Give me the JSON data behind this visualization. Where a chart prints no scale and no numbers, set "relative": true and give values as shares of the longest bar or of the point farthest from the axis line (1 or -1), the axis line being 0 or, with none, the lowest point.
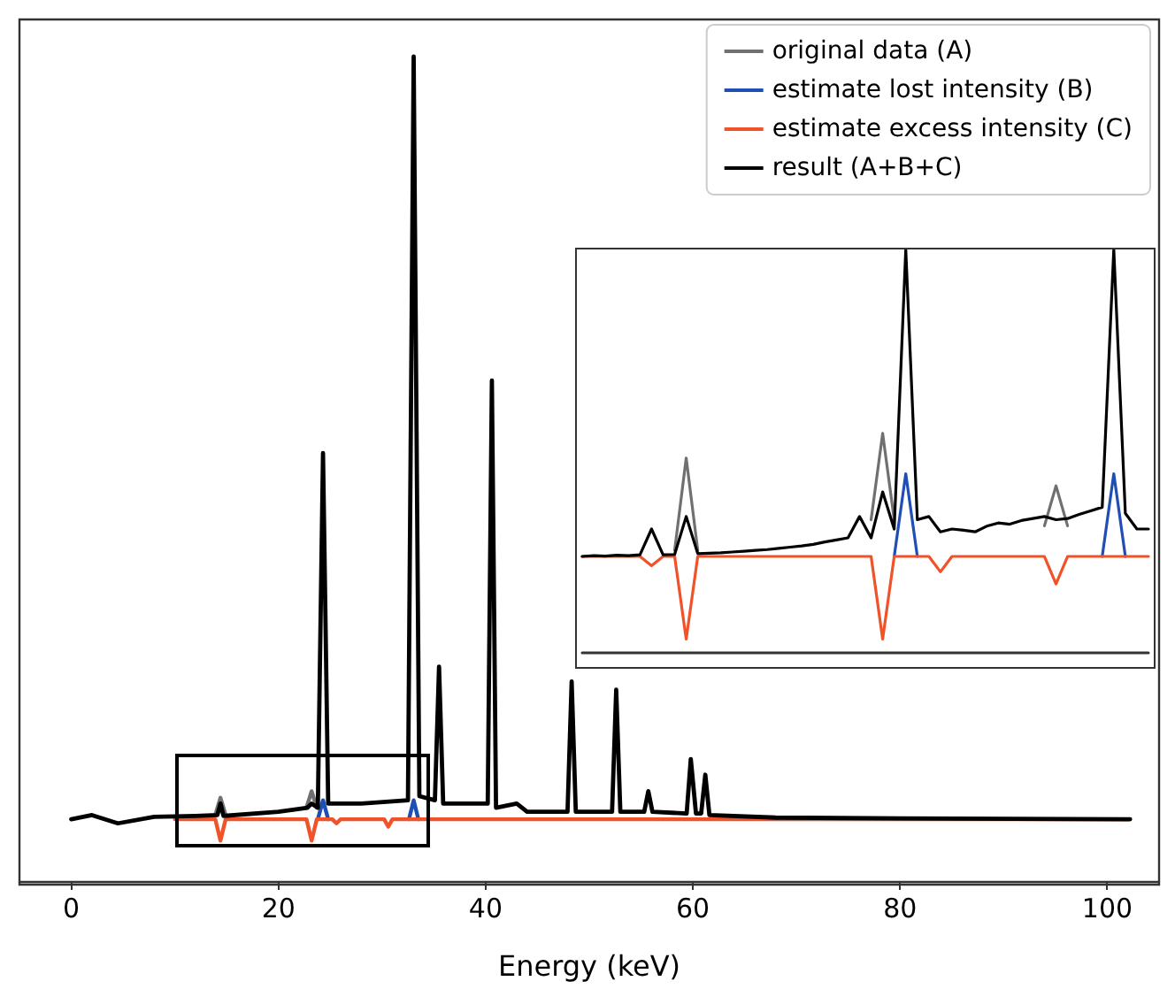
{
  "chart_data": [
    {
      "type": "line",
      "xlabel": "Energy (keV)",
      "relative": true,
      "xlim": [
        -5,
        105
      ],
      "xticks": [
        0,
        20,
        40,
        60,
        80,
        100
      ],
      "legend": "top right",
      "marker": "none",
      "line_style": "solid",
      "series": [
        {
          "name": "original data (A)",
          "color": "#707070",
          "x": [
            13.9,
            14.4,
            14.9,
            20,
            22.7,
            23.2,
            23.7
          ],
          "values": [
            0.08,
            0.101,
            0.08,
            null,
            0.089,
            0.109,
            0.089
          ]
        },
        {
          "name": "estimate lost intensity (B)",
          "color": "#1f4fb4",
          "x": [
            23.8,
            24.3,
            24.8,
            28,
            32.6,
            33.05,
            33.5
          ],
          "values": [
            0.075,
            0.098,
            0.075,
            null,
            0.075,
            0.098,
            0.075
          ]
        },
        {
          "name": "estimate excess intensity (C)",
          "color": "#f0522a",
          "x": [
            10,
            13.9,
            14.4,
            14.9,
            22.7,
            23.2,
            23.7,
            25.2,
            25.6,
            26,
            30.2,
            30.6,
            31,
            102
          ],
          "values": [
            0.075,
            0.075,
            0.049,
            0.075,
            0.075,
            0.049,
            0.075,
            0.075,
            0.07,
            0.075,
            0.075,
            0.066,
            0.075,
            0.075
          ]
        },
        {
          "name": "result (A+B+C)",
          "color": "#000000",
          "x": [
            0,
            2,
            4.5,
            8,
            12,
            14.1,
            14.4,
            14.7,
            20,
            22.8,
            23.2,
            23.8,
            24.3,
            24.8,
            28,
            32.5,
            33.05,
            33.6,
            35.1,
            35.5,
            35.9,
            38.5,
            40.2,
            40.6,
            41,
            43,
            44,
            47.9,
            48.3,
            48.7,
            52.2,
            52.6,
            53,
            55.3,
            55.7,
            56.1,
            59.4,
            59.8,
            60.3,
            60.8,
            61.2,
            61.6,
            68,
            80,
            102.2
          ],
          "values": [
            0.075,
            0.08,
            0.07,
            0.078,
            0.079,
            0.08,
            0.094,
            0.079,
            0.084,
            0.089,
            0.094,
            0.089,
            0.519,
            0.094,
            0.094,
            0.098,
            1,
            0.103,
            0.098,
            0.26,
            0.094,
            0.094,
            0.094,
            0.607,
            0.089,
            0.094,
            0.084,
            0.084,
            0.242,
            0.084,
            0.084,
            0.232,
            0.084,
            0.084,
            0.109,
            0.084,
            0.082,
            0.148,
            0.082,
            0.082,
            0.129,
            0.08,
            0.077,
            0.076,
            0.075
          ]
        }
      ]
    },
    {
      "type": "line",
      "relative": true,
      "marker": "none",
      "line_style": "solid",
      "categories": [
        null,
        null,
        null,
        null,
        null,
        null,
        null,
        null,
        null,
        null,
        null,
        null,
        null,
        null,
        null,
        null,
        null,
        null,
        null,
        null,
        null,
        null,
        null,
        null,
        null,
        null,
        null,
        null,
        null,
        null,
        null,
        null,
        null,
        null,
        null,
        null,
        null,
        null,
        null,
        null,
        null,
        null,
        null,
        null,
        null,
        null,
        null,
        null,
        null,
        null
      ],
      "series": [
        {
          "color": "#707070",
          "values": [
            null,
            null,
            null,
            null,
            null,
            null,
            null,
            null,
            0.254,
            0.483,
            0.254,
            null,
            null,
            null,
            null,
            null,
            null,
            null,
            null,
            null,
            null,
            null,
            null,
            null,
            null,
            0.33,
            0.544,
            0.33,
            null,
            null,
            null,
            null,
            null,
            null,
            null,
            null,
            null,
            null,
            null,
            null,
            0.315,
            0.414,
            0.315,
            null,
            null,
            null,
            null,
            null,
            null,
            null
          ]
        },
        {
          "color": "#1f4fb4",
          "values": [
            null,
            null,
            null,
            null,
            null,
            null,
            null,
            null,
            null,
            null,
            null,
            null,
            null,
            null,
            null,
            null,
            null,
            null,
            null,
            null,
            null,
            null,
            null,
            null,
            null,
            null,
            null,
            0.239,
            0.444,
            0.239,
            null,
            null,
            null,
            null,
            null,
            null,
            null,
            null,
            null,
            null,
            null,
            null,
            null,
            null,
            null,
            0.239,
            0.444,
            0.239,
            null,
            null
          ]
        },
        {
          "color": "#f0522a",
          "values": [
            0.239,
            0.239,
            0.239,
            0.239,
            0.239,
            0.239,
            0.216,
            0.239,
            0.239,
            0.034,
            0.239,
            0.239,
            0.239,
            0.239,
            0.239,
            0.239,
            0.239,
            0.239,
            0.239,
            0.239,
            0.239,
            0.239,
            0.239,
            0.239,
            0.239,
            0.239,
            0.034,
            0.239,
            0.239,
            0.239,
            0.239,
            0.201,
            0.239,
            0.239,
            0.239,
            0.239,
            0.239,
            0.239,
            0.239,
            0.239,
            0.239,
            0.171,
            0.239,
            0.239,
            0.239,
            0.239,
            0.239,
            0.239,
            0.239,
            0.239
          ]
        },
        {
          "color": "#000000",
          "values": [
            0.239,
            0.241,
            0.24,
            0.242,
            0.241,
            0.243,
            0.307,
            0.243,
            0.244,
            0.338,
            0.246,
            0.247,
            0.248,
            0.25,
            0.252,
            0.254,
            0.256,
            0.259,
            0.262,
            0.265,
            0.269,
            0.275,
            0.28,
            0.285,
            0.338,
            0.285,
            0.399,
            0.307,
            1,
            0.33,
            0.338,
            0.3,
            0.307,
            0.304,
            0.3,
            0.314,
            0.322,
            0.319,
            0.328,
            0.333,
            0.338,
            0.33,
            0.333,
            0.343,
            0.352,
            0.361,
            1,
            0.346,
            0.307,
            0.307
          ]
        }
      ]
    }
  ]
}
